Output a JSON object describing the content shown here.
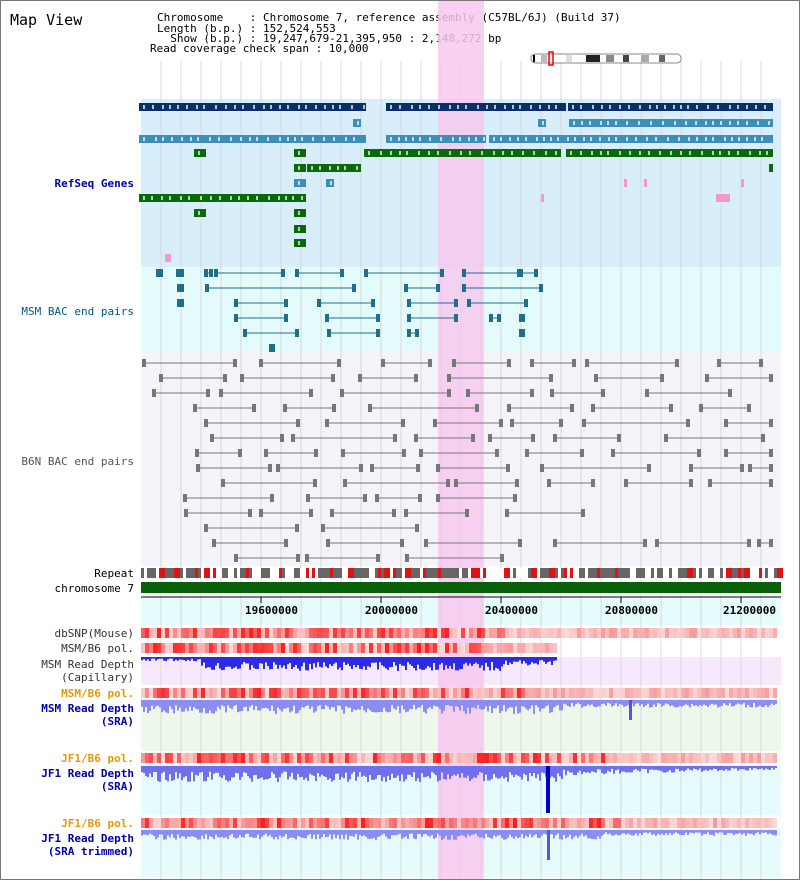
{
  "header": {
    "title": "Map View",
    "chromosome_line": "Chromosome    : Chromosome 7, reference assembly (C57BL/6J) (Build 37)",
    "length_line": "Length (b.p.) : 152,524,553",
    "show_line": "  Show (b.p.) : 19,247,679-21,395,950 : 2,148,272 bp",
    "coverage_line": "Read coverage check span : 10,000"
  },
  "tracks": {
    "refseq": "RefSeq Genes",
    "msm_bac": "MSM BAC end pairs",
    "b6n_bac": "B6N BAC end pairs",
    "repeat": "Repeat",
    "chromosome": "chromosome 7",
    "dbsnp": "dbSNP(Mouse)",
    "msm_b6_pol_1": "MSM/B6 pol.",
    "msm_depth_cap_1": "MSM Read Depth",
    "msm_depth_cap_2": "(Capillary)",
    "msm_b6_pol_2": "MSM/B6 pol.",
    "msm_depth_sra_1": "MSM Read Depth",
    "msm_depth_sra_2": "(SRA)",
    "jf1_b6_pol_1": "JF1/B6 pol.",
    "jf1_depth_sra_1": "JF1 Read Depth",
    "jf1_depth_sra_2": "(SRA)",
    "jf1_b6_pol_2": "JF1/B6 pol.",
    "jf1_depth_trim_1": "JF1 Read Depth",
    "jf1_depth_trim_2": "(SRA trimmed)"
  },
  "axis": {
    "ticks": [
      "19600000",
      "20000000",
      "20400000",
      "20800000",
      "21200000"
    ]
  },
  "colors": {
    "refseq_label": "#0000aa",
    "msm_bac_label": "#005a80",
    "b6n_label": "#555555",
    "pol_label": "#e69a00",
    "depth_label": "#0000aa",
    "highlight": "#f7c8ee",
    "chrom_bar": "#086008"
  }
}
